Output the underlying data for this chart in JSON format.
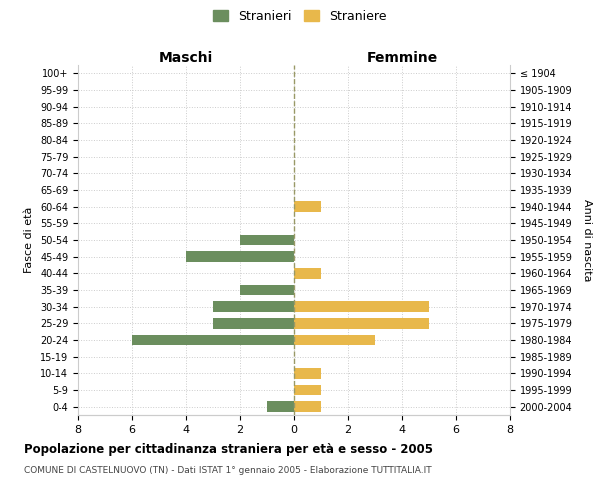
{
  "age_groups": [
    "100+",
    "95-99",
    "90-94",
    "85-89",
    "80-84",
    "75-79",
    "70-74",
    "65-69",
    "60-64",
    "55-59",
    "50-54",
    "45-49",
    "40-44",
    "35-39",
    "30-34",
    "25-29",
    "20-24",
    "15-19",
    "10-14",
    "5-9",
    "0-4"
  ],
  "birth_years": [
    "≤ 1904",
    "1905-1909",
    "1910-1914",
    "1915-1919",
    "1920-1924",
    "1925-1929",
    "1930-1934",
    "1935-1939",
    "1940-1944",
    "1945-1949",
    "1950-1954",
    "1955-1959",
    "1960-1964",
    "1965-1969",
    "1970-1974",
    "1975-1979",
    "1980-1984",
    "1985-1989",
    "1990-1994",
    "1995-1999",
    "2000-2004"
  ],
  "maschi": [
    0,
    0,
    0,
    0,
    0,
    0,
    0,
    0,
    0,
    0,
    2,
    4,
    0,
    2,
    3,
    3,
    6,
    0,
    0,
    0,
    1
  ],
  "femmine": [
    0,
    0,
    0,
    0,
    0,
    0,
    0,
    0,
    1,
    0,
    0,
    0,
    1,
    0,
    5,
    5,
    3,
    0,
    1,
    1,
    1
  ],
  "maschi_color": "#6b8e5e",
  "femmine_color": "#e8b84b",
  "title": "Popolazione per cittadinanza straniera per età e sesso - 2005",
  "subtitle": "COMUNE DI CASTELNUOVO (TN) - Dati ISTAT 1° gennaio 2005 - Elaborazione TUTTITALIA.IT",
  "xlabel_left": "Maschi",
  "xlabel_right": "Femmine",
  "ylabel_left": "Fasce di età",
  "ylabel_right": "Anni di nascita",
  "legend_maschi": "Stranieri",
  "legend_femmine": "Straniere",
  "xlim": 8,
  "background_color": "#ffffff",
  "grid_color": "#cccccc"
}
